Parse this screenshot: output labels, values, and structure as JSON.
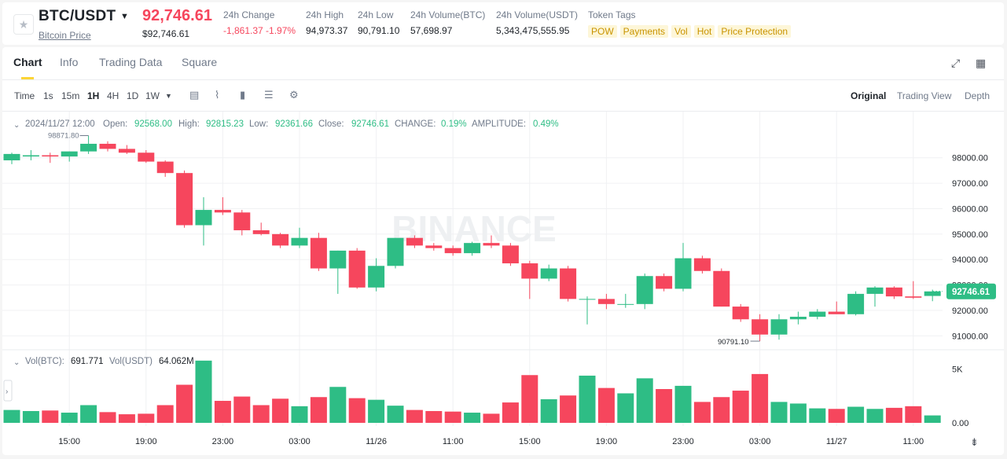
{
  "header": {
    "pair": "BTC/USDT",
    "pair_sub": "Bitcoin Price",
    "price": "92,746.61",
    "price_usd": "$92,746.61",
    "stats": [
      {
        "label": "24h Change",
        "value": "-1,861.37 -1.97%",
        "color": "red"
      },
      {
        "label": "24h High",
        "value": "94,973.37"
      },
      {
        "label": "24h Low",
        "value": "90,791.10"
      },
      {
        "label": "24h Volume(BTC)",
        "value": "57,698.97"
      },
      {
        "label": "24h Volume(USDT)",
        "value": "5,343,475,555.95"
      }
    ],
    "token_tags_label": "Token Tags",
    "tags": [
      "POW",
      "Payments",
      "Vol",
      "Hot",
      "Price Protection"
    ]
  },
  "tabs": [
    "Chart",
    "Info",
    "Trading Data",
    "Square"
  ],
  "toolbar": {
    "time_label": "Time",
    "intervals": [
      "1s",
      "15m",
      "1H",
      "4H",
      "1D",
      "1W"
    ],
    "active_interval": "1H",
    "views": [
      "Original",
      "Trading View",
      "Depth"
    ],
    "active_view": "Original",
    "icons": [
      "calendar-icon",
      "indicator-icon",
      "candle-type-icon",
      "template-icon",
      "settings-icon"
    ]
  },
  "legend": {
    "date": "2024/11/27 12:00",
    "open_label": "Open:",
    "open": "92568.00",
    "high_label": "High:",
    "high": "92815.23",
    "low_label": "Low:",
    "low": "92361.66",
    "close_label": "Close:",
    "close": "92746.61",
    "change_label": "CHANGE:",
    "change": "0.19%",
    "amplitude_label": "AMPLITUDE:",
    "amplitude": "0.49%"
  },
  "vol_legend": {
    "btc_label": "Vol(BTC):",
    "btc": "691.771",
    "usdt_label": "Vol(USDT)",
    "usdt": "64.062M"
  },
  "annotations": {
    "high": "98871.80",
    "low": "90791.10",
    "current": "92746.61"
  },
  "watermark": "BINANCE",
  "colors": {
    "up": "#2ebd85",
    "down": "#f6465d",
    "accent": "#fcd535"
  },
  "chart_data": {
    "type": "candlestick",
    "price_ticks": [
      98000,
      97000,
      96000,
      95000,
      94000,
      93000,
      92000,
      91000
    ],
    "price_tick_labels": [
      "98000.00",
      "97000.00",
      "96000.00",
      "95000.00",
      "94000.00",
      "93000.00",
      "92000.00",
      "91000.00"
    ],
    "vol_ticks": [
      {
        "v": 5000,
        "label": "5K"
      },
      {
        "v": 0,
        "label": "0.00"
      }
    ],
    "time_labels": [
      {
        "i": 3,
        "label": "15:00"
      },
      {
        "i": 7,
        "label": "19:00"
      },
      {
        "i": 11,
        "label": "23:00"
      },
      {
        "i": 15,
        "label": "03:00"
      },
      {
        "i": 19,
        "label": "11/26"
      },
      {
        "i": 23,
        "label": "11:00"
      },
      {
        "i": 27,
        "label": "15:00"
      },
      {
        "i": 31,
        "label": "19:00"
      },
      {
        "i": 35,
        "label": "23:00"
      },
      {
        "i": 39,
        "label": "03:00"
      },
      {
        "i": 43,
        "label": "11/27"
      },
      {
        "i": 47,
        "label": "11:00"
      }
    ],
    "candles": [
      {
        "o": 97900,
        "h": 98200,
        "l": 97750,
        "c": 98150,
        "v": 1200
      },
      {
        "o": 98050,
        "h": 98300,
        "l": 97900,
        "c": 98100,
        "v": 1100
      },
      {
        "o": 98100,
        "h": 98200,
        "l": 97800,
        "c": 98050,
        "v": 1150
      },
      {
        "o": 98050,
        "h": 98250,
        "l": 97850,
        "c": 98250,
        "v": 950
      },
      {
        "o": 98250,
        "h": 98871.8,
        "l": 98150,
        "c": 98550,
        "v": 1650
      },
      {
        "o": 98550,
        "h": 98650,
        "l": 98250,
        "c": 98350,
        "v": 1000
      },
      {
        "o": 98350,
        "h": 98500,
        "l": 98150,
        "c": 98200,
        "v": 800
      },
      {
        "o": 98200,
        "h": 98300,
        "l": 97800,
        "c": 97850,
        "v": 850
      },
      {
        "o": 97850,
        "h": 97900,
        "l": 97250,
        "c": 97400,
        "v": 1650
      },
      {
        "o": 97400,
        "h": 97500,
        "l": 95250,
        "c": 95350,
        "v": 3550
      },
      {
        "o": 95350,
        "h": 96450,
        "l": 94550,
        "c": 95950,
        "v": 5800
      },
      {
        "o": 95950,
        "h": 96450,
        "l": 95750,
        "c": 95850,
        "v": 2050
      },
      {
        "o": 95850,
        "h": 95950,
        "l": 94950,
        "c": 95150,
        "v": 2450
      },
      {
        "o": 95150,
        "h": 95450,
        "l": 94950,
        "c": 95000,
        "v": 1650
      },
      {
        "o": 95000,
        "h": 95050,
        "l": 94450,
        "c": 94550,
        "v": 2250
      },
      {
        "o": 94550,
        "h": 95250,
        "l": 94450,
        "c": 94850,
        "v": 1550
      },
      {
        "o": 94850,
        "h": 95050,
        "l": 93550,
        "c": 93650,
        "v": 2400
      },
      {
        "o": 93650,
        "h": 94350,
        "l": 92650,
        "c": 94350,
        "v": 3350
      },
      {
        "o": 94350,
        "h": 94450,
        "l": 92850,
        "c": 92900,
        "v": 2300
      },
      {
        "o": 92900,
        "h": 94050,
        "l": 92750,
        "c": 93750,
        "v": 2150
      },
      {
        "o": 93750,
        "h": 94850,
        "l": 93650,
        "c": 94850,
        "v": 1600
      },
      {
        "o": 94850,
        "h": 94950,
        "l": 94450,
        "c": 94550,
        "v": 1200
      },
      {
        "o": 94550,
        "h": 94650,
        "l": 94350,
        "c": 94450,
        "v": 1100
      },
      {
        "o": 94450,
        "h": 94550,
        "l": 94150,
        "c": 94250,
        "v": 1050
      },
      {
        "o": 94250,
        "h": 94700,
        "l": 94150,
        "c": 94650,
        "v": 950
      },
      {
        "o": 94650,
        "h": 94950,
        "l": 94450,
        "c": 94550,
        "v": 850
      },
      {
        "o": 94550,
        "h": 94650,
        "l": 93750,
        "c": 93850,
        "v": 1900
      },
      {
        "o": 93850,
        "h": 93950,
        "l": 92450,
        "c": 93250,
        "v": 4450
      },
      {
        "o": 93250,
        "h": 93800,
        "l": 93150,
        "c": 93650,
        "v": 2200
      },
      {
        "o": 93650,
        "h": 93750,
        "l": 92350,
        "c": 92450,
        "v": 2550
      },
      {
        "o": 92450,
        "h": 92550,
        "l": 91450,
        "c": 92450,
        "v": 4400
      },
      {
        "o": 92450,
        "h": 92650,
        "l": 92050,
        "c": 92250,
        "v": 3250
      },
      {
        "o": 92250,
        "h": 92650,
        "l": 92100,
        "c": 92250,
        "v": 2750
      },
      {
        "o": 92250,
        "h": 93450,
        "l": 92050,
        "c": 93350,
        "v": 4150
      },
      {
        "o": 93350,
        "h": 93450,
        "l": 92750,
        "c": 92850,
        "v": 3150
      },
      {
        "o": 92850,
        "h": 94650,
        "l": 92750,
        "c": 94050,
        "v": 3450
      },
      {
        "o": 94050,
        "h": 94150,
        "l": 93450,
        "c": 93550,
        "v": 1950
      },
      {
        "o": 93550,
        "h": 93650,
        "l": 92150,
        "c": 92150,
        "v": 2400
      },
      {
        "o": 92150,
        "h": 92250,
        "l": 91550,
        "c": 91650,
        "v": 3000
      },
      {
        "o": 91650,
        "h": 91850,
        "l": 90791.1,
        "c": 91050,
        "v": 4550
      },
      {
        "o": 91050,
        "h": 91850,
        "l": 90850,
        "c": 91650,
        "v": 1950
      },
      {
        "o": 91650,
        "h": 91950,
        "l": 91450,
        "c": 91750,
        "v": 1800
      },
      {
        "o": 91750,
        "h": 92050,
        "l": 91650,
        "c": 91950,
        "v": 1350
      },
      {
        "o": 91950,
        "h": 92350,
        "l": 91900,
        "c": 91850,
        "v": 1300
      },
      {
        "o": 91850,
        "h": 92750,
        "l": 91800,
        "c": 92650,
        "v": 1500
      },
      {
        "o": 92650,
        "h": 92950,
        "l": 92150,
        "c": 92900,
        "v": 1300
      },
      {
        "o": 92900,
        "h": 92950,
        "l": 92450,
        "c": 92550,
        "v": 1400
      },
      {
        "o": 92550,
        "h": 93150,
        "l": 92450,
        "c": 92500,
        "v": 1550
      },
      {
        "o": 92568,
        "h": 92815.23,
        "l": 92361.66,
        "c": 92746.61,
        "v": 692
      }
    ]
  }
}
